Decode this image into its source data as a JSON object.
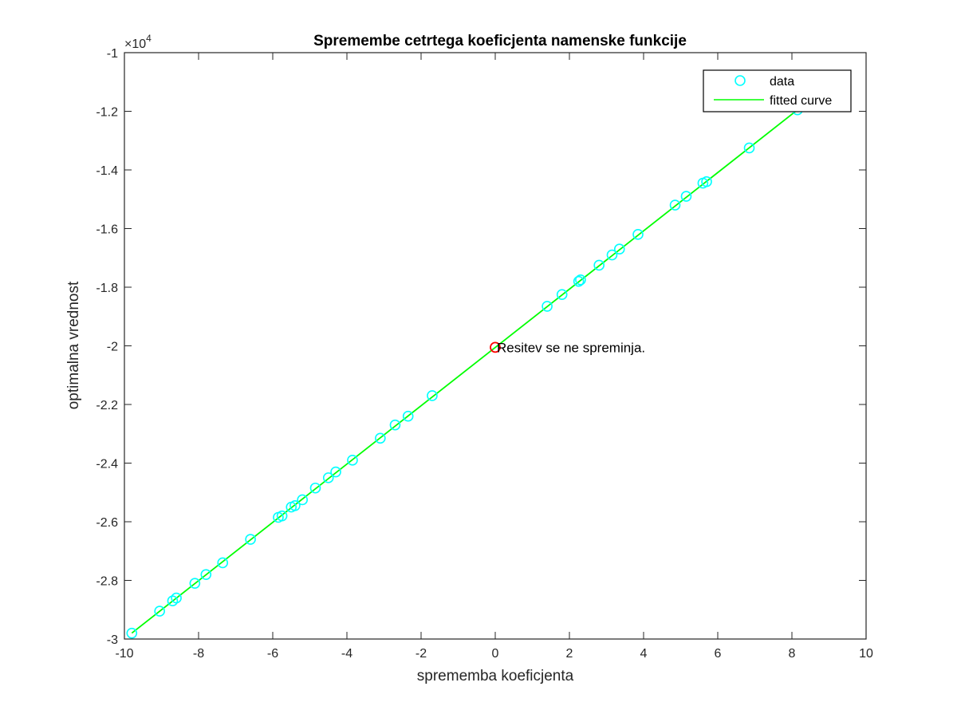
{
  "chart_data": {
    "type": "scatter",
    "title": "Spremembe cetrtega koeficjenta namenske funkcije",
    "xlabel": "sprememba koeficjenta",
    "ylabel": "optimalna vrednost",
    "xlim": [
      -10,
      10
    ],
    "ylim": [
      -30000,
      -10000
    ],
    "x_ticks": [
      -10,
      -8,
      -6,
      -4,
      -2,
      0,
      2,
      4,
      6,
      8,
      10
    ],
    "x_tick_labels": [
      "-10",
      "-8",
      "-6",
      "-4",
      "-2",
      "0",
      "2",
      "4",
      "6",
      "8",
      "10"
    ],
    "y_ticks": [
      -30000,
      -28000,
      -26000,
      -24000,
      -22000,
      -20000,
      -18000,
      -16000,
      -14000,
      -12000,
      -10000
    ],
    "y_tick_labels": [
      "-3",
      "-2.8",
      "-2.6",
      "-2.4",
      "-2.2",
      "-2",
      "-1.8",
      "-1.6",
      "-1.4",
      "-1.2",
      "-1"
    ],
    "y_exponent_label": {
      "base": "×10",
      "exponent": "4"
    },
    "grid": false,
    "legend_position": "top-right",
    "series": [
      {
        "name": "data",
        "type": "scatter",
        "marker": "circle",
        "color": "#00ffff",
        "points": [
          [
            -9.8,
            -29800
          ],
          [
            -9.05,
            -29050
          ],
          [
            -8.7,
            -28700
          ],
          [
            -8.6,
            -28600
          ],
          [
            -8.1,
            -28100
          ],
          [
            -7.8,
            -27800
          ],
          [
            -7.35,
            -27400
          ],
          [
            -6.6,
            -26600
          ],
          [
            -5.85,
            -25850
          ],
          [
            -5.75,
            -25800
          ],
          [
            -5.5,
            -25500
          ],
          [
            -5.4,
            -25450
          ],
          [
            -5.2,
            -25250
          ],
          [
            -4.85,
            -24850
          ],
          [
            -4.5,
            -24500
          ],
          [
            -4.3,
            -24300
          ],
          [
            -3.85,
            -23900
          ],
          [
            -3.1,
            -23150
          ],
          [
            -2.7,
            -22700
          ],
          [
            -2.35,
            -22400
          ],
          [
            -1.7,
            -21700
          ],
          [
            1.4,
            -18650
          ],
          [
            1.8,
            -18250
          ],
          [
            2.25,
            -17800
          ],
          [
            2.3,
            -17750
          ],
          [
            2.8,
            -17250
          ],
          [
            3.15,
            -16900
          ],
          [
            3.35,
            -16700
          ],
          [
            3.85,
            -16200
          ],
          [
            4.85,
            -15200
          ],
          [
            5.15,
            -14900
          ],
          [
            5.6,
            -14450
          ],
          [
            5.7,
            -14400
          ],
          [
            6.85,
            -13250
          ],
          [
            8.15,
            -11950
          ]
        ]
      },
      {
        "name": "fitted curve",
        "type": "line",
        "color": "#00ff00",
        "points": [
          [
            -9.8,
            -29800
          ],
          [
            8.15,
            -11950
          ]
        ]
      }
    ],
    "highlight_point": {
      "x": 0,
      "y": -20050,
      "color": "#ff0000"
    },
    "annotation": {
      "text": "Resitev se ne spreminja.",
      "x": 0,
      "y": -20050
    }
  }
}
